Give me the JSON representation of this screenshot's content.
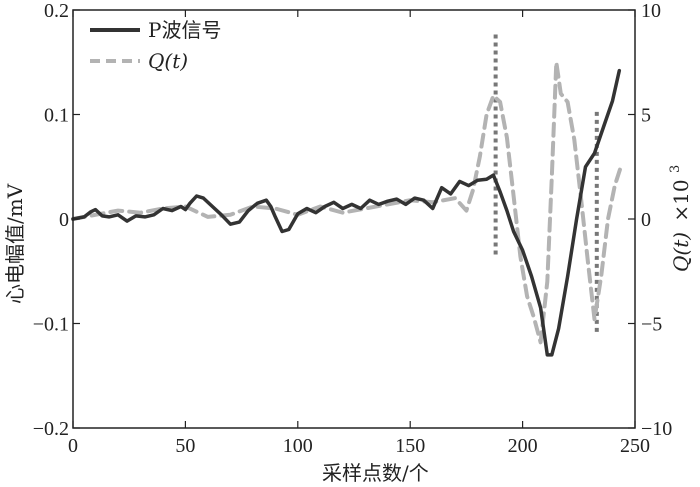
{
  "chart_data": {
    "type": "line",
    "xlabel": "采样点数/个",
    "ylabel_left": "心电幅值/mV",
    "ylabel_right_main": "Q(t)",
    "ylabel_right_suffix": "×10",
    "ylabel_right_exp": "3",
    "xlim": [
      0,
      250
    ],
    "ylim_left": [
      -0.2,
      0.2
    ],
    "ylim_right": [
      -10,
      10
    ],
    "x_ticks": [
      0,
      50,
      100,
      150,
      200,
      250
    ],
    "x_tick_labels": [
      "0",
      "50",
      "100",
      "150",
      "200",
      "250"
    ],
    "y_left_ticks": [
      -0.2,
      -0.1,
      0,
      0.1,
      0.2
    ],
    "y_left_tick_labels": [
      "−0.2",
      "−0.1",
      "0",
      "0.1",
      "0.2"
    ],
    "y_right_ticks": [
      -10,
      -5,
      0,
      5,
      10
    ],
    "y_right_tick_labels": [
      "−10",
      "−5",
      "0",
      "5",
      "10"
    ],
    "grid": false,
    "legend_position": "top-left",
    "legend": [
      {
        "label": "P波信号",
        "style": "solid",
        "color": "#333333"
      },
      {
        "label": "Q(t)",
        "style": "dashed",
        "color": "#b3b3b3"
      }
    ],
    "series": [
      {
        "name": "P波信号",
        "axis": "left",
        "color": "#333333",
        "style": "solid",
        "x": [
          0,
          5,
          8,
          10,
          13,
          16,
          20,
          24,
          28,
          32,
          36,
          40,
          44,
          48,
          50,
          52,
          55,
          58,
          62,
          66,
          70,
          74,
          78,
          82,
          86,
          88,
          90,
          93,
          96,
          100,
          104,
          108,
          112,
          116,
          120,
          124,
          128,
          132,
          136,
          140,
          144,
          148,
          152,
          156,
          160,
          164,
          168,
          172,
          176,
          180,
          184,
          187,
          190,
          193,
          196,
          200,
          204,
          208,
          211,
          213,
          216,
          220,
          224,
          228,
          232,
          236,
          240,
          243
        ],
        "y": [
          0.0,
          0.002,
          0.007,
          0.009,
          0.003,
          0.002,
          0.004,
          -0.002,
          0.003,
          0.002,
          0.004,
          0.01,
          0.008,
          0.012,
          0.009,
          0.015,
          0.022,
          0.02,
          0.012,
          0.004,
          -0.005,
          -0.003,
          0.008,
          0.015,
          0.018,
          0.012,
          0.002,
          -0.012,
          -0.01,
          0.005,
          0.01,
          0.006,
          0.012,
          0.016,
          0.01,
          0.014,
          0.01,
          0.018,
          0.014,
          0.017,
          0.019,
          0.014,
          0.02,
          0.018,
          0.01,
          0.03,
          0.024,
          0.036,
          0.032,
          0.037,
          0.038,
          0.042,
          0.026,
          0.008,
          -0.012,
          -0.03,
          -0.055,
          -0.085,
          -0.13,
          -0.13,
          -0.105,
          -0.055,
          0.0,
          0.05,
          0.063,
          0.088,
          0.113,
          0.142
        ]
      },
      {
        "name": "Q(t)",
        "axis": "right",
        "color": "#b3b3b3",
        "style": "dashed",
        "x": [
          0,
          10,
          20,
          30,
          40,
          50,
          60,
          70,
          80,
          90,
          100,
          110,
          120,
          130,
          140,
          150,
          160,
          170,
          175,
          178,
          181,
          184,
          187,
          190,
          193,
          196,
          199,
          202,
          205,
          208,
          211,
          213,
          215,
          217,
          220,
          223,
          226,
          229,
          232,
          235,
          238,
          241,
          244
        ],
        "y": [
          0.0,
          0.2,
          0.4,
          0.3,
          0.5,
          0.6,
          0.1,
          0.2,
          0.6,
          0.5,
          0.2,
          0.6,
          0.3,
          0.5,
          0.7,
          0.9,
          0.8,
          1.0,
          0.4,
          1.4,
          3.0,
          5.0,
          5.9,
          5.6,
          3.9,
          1.1,
          -1.8,
          -3.7,
          -4.7,
          -5.9,
          -3.0,
          2.0,
          7.5,
          6.0,
          5.6,
          3.8,
          1.0,
          -2.0,
          -4.8,
          -2.7,
          0.0,
          1.6,
          2.6
        ]
      }
    ],
    "vertical_markers": [
      {
        "x": 188,
        "y_from": -1.7,
        "y_to": 8.9,
        "axis": "right",
        "style": "dotted",
        "color": "#777777"
      },
      {
        "x": 233,
        "y_from": -5.4,
        "y_to": 5.2,
        "axis": "right",
        "style": "dotted",
        "color": "#777777"
      }
    ]
  }
}
